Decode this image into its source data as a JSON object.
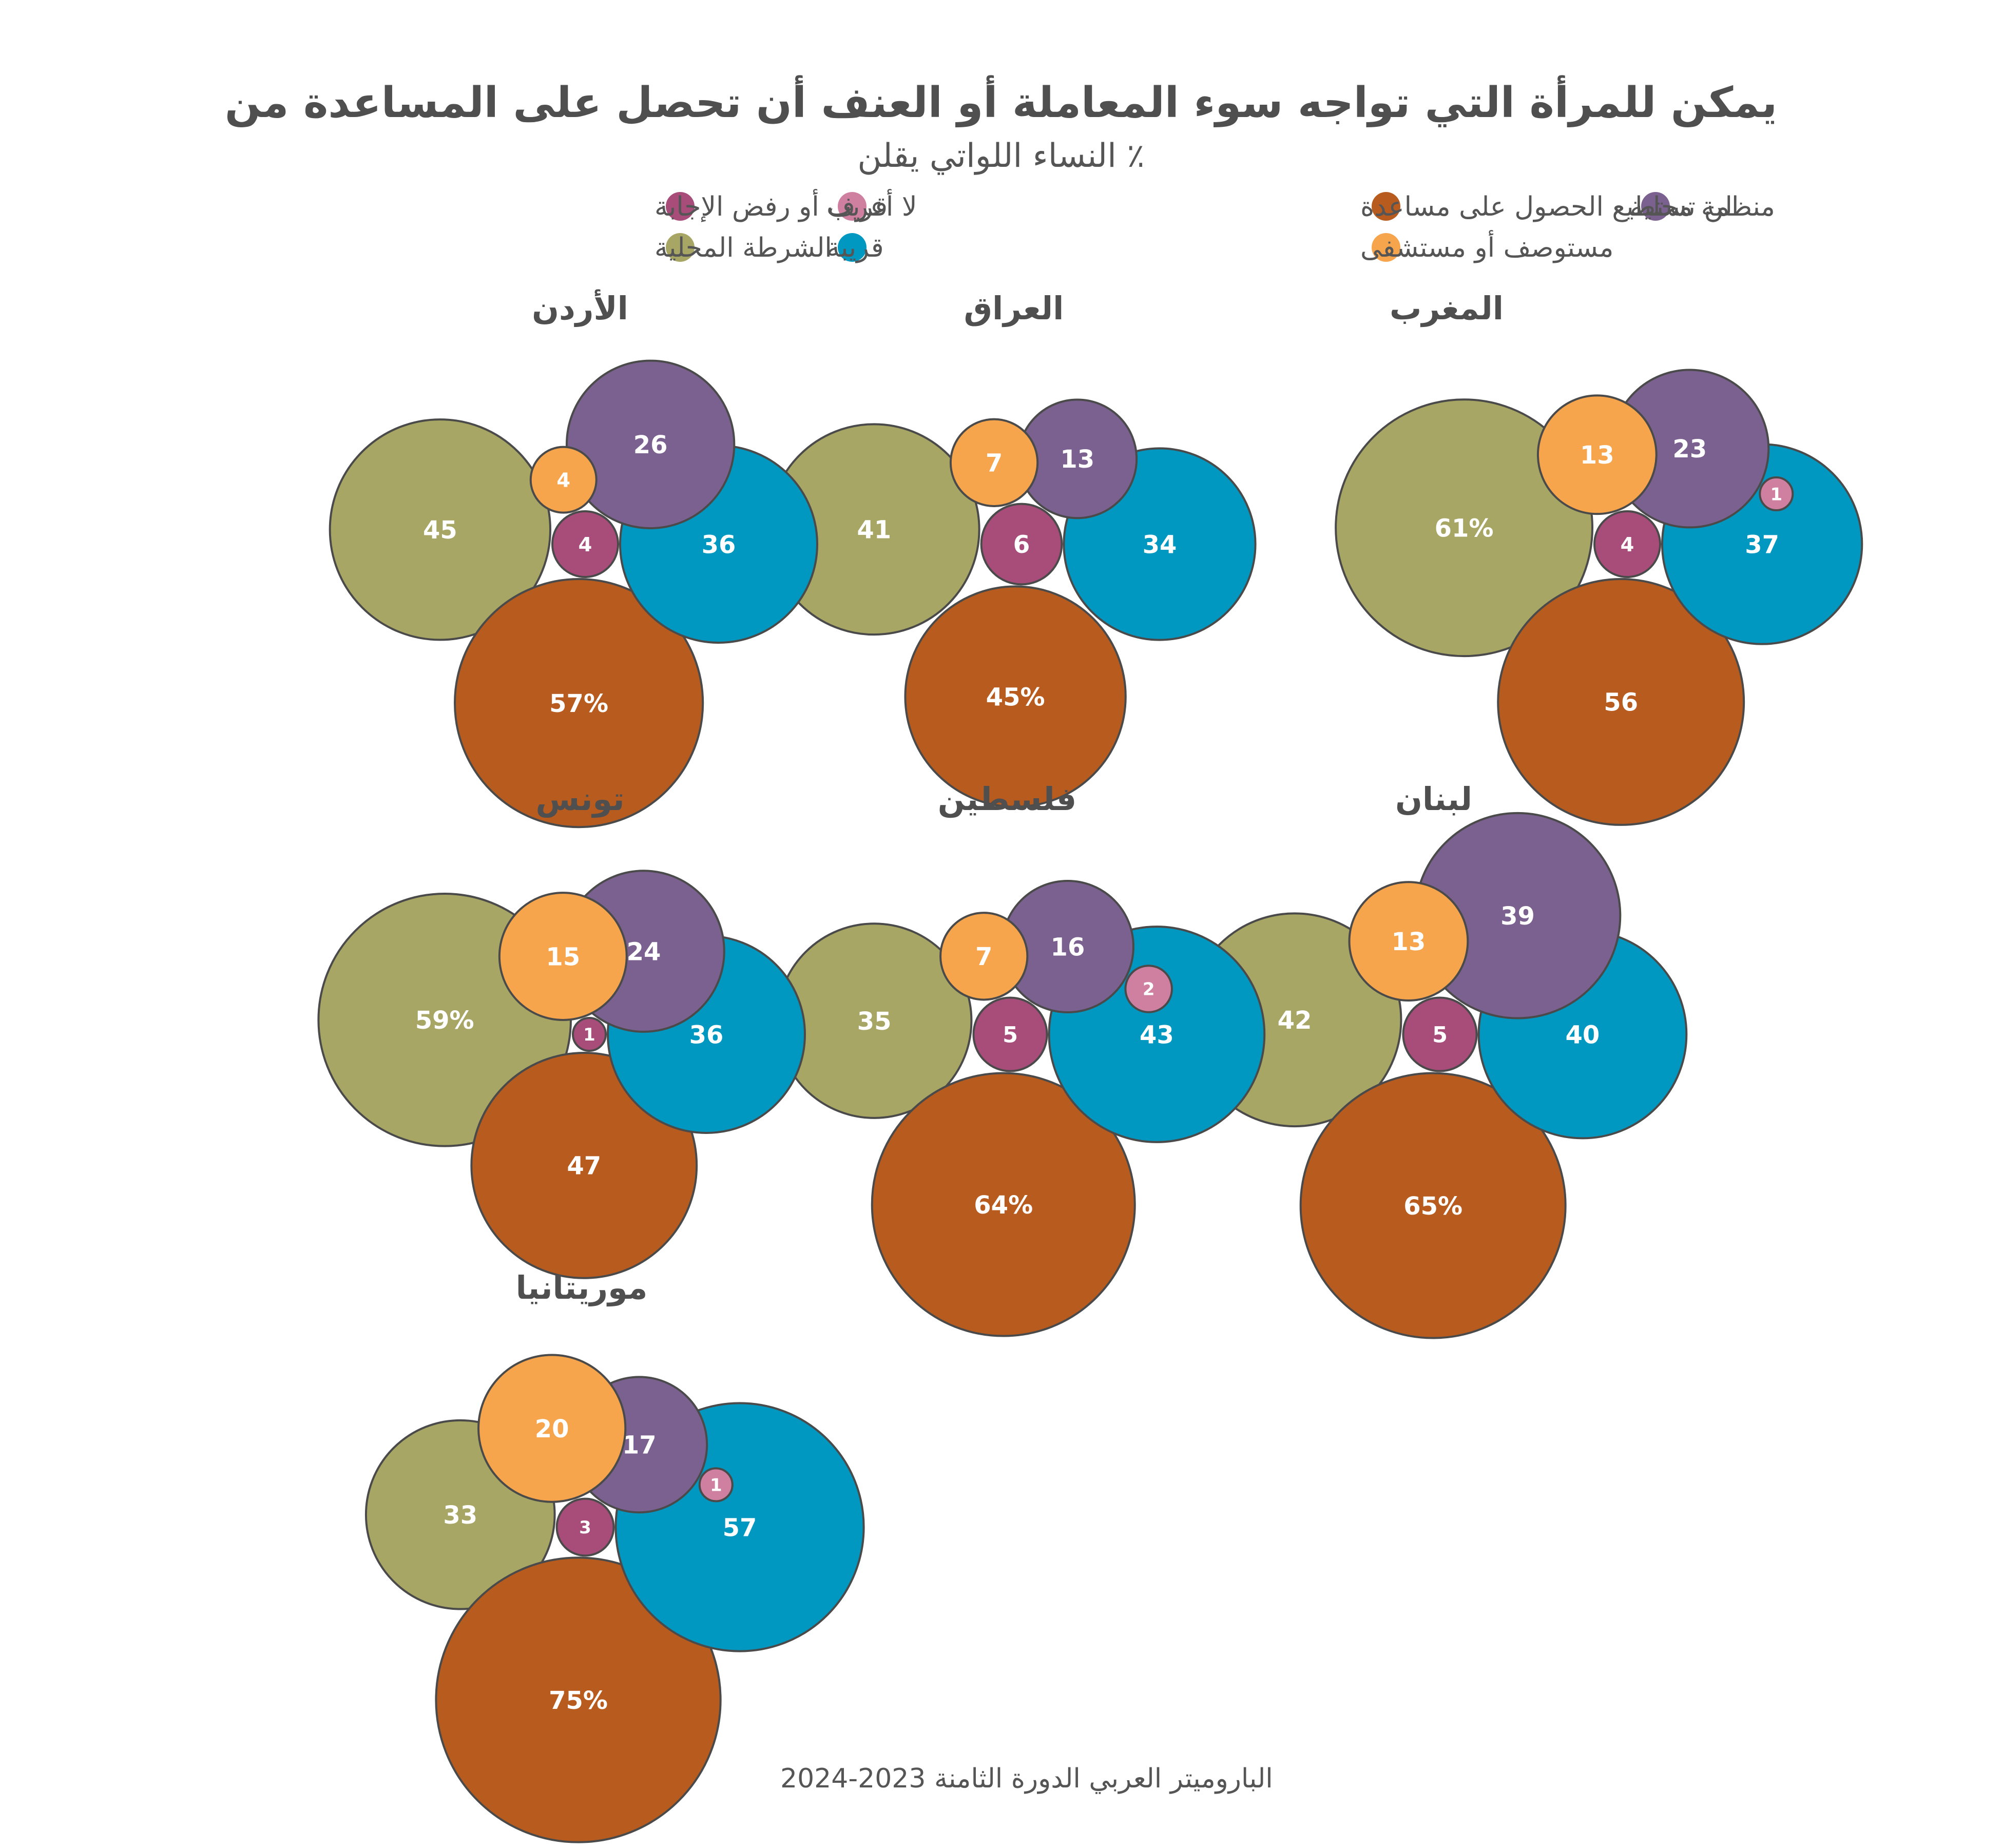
{
  "title": "يمكن للمرأة التي تواجه سوء المعاملة أو العنف أن تحصل على المساعدة من",
  "subtitle": "٪ النساء اللواتي يقلن",
  "source": "الباروميتر العربي الدورة الثامنة 2023-2024",
  "legend": [
    {
      "key": "org",
      "label": "منظمة محلية",
      "color": "#7b6190"
    },
    {
      "key": "none",
      "label": "لن تستطيع الحصول على مساعدة",
      "color": "#b85b1e"
    },
    {
      "key": "male",
      "label": "قريب",
      "color": "#cf7f9f"
    },
    {
      "key": "dk",
      "label": "لا أعرف أو رفض الإجابة",
      "color": "#a84c7a"
    },
    {
      "key": "health",
      "label": "مستوصف أو مستشفى",
      "color": "#f6a54d"
    },
    {
      "key": "female",
      "label": "قريبة",
      "color": "#0098c0"
    },
    {
      "key": "police",
      "label": "الشرطة المحلية",
      "color": "#a8a664"
    }
  ],
  "chart_data": {
    "type": "bubble",
    "title": "يمكن للمرأة التي تواجه سوء المعاملة أو العنف أن تحصل على المساعدة من",
    "subtitle": "٪ النساء اللواتي يقلن",
    "unit": "%",
    "series": [
      "منظمة محلية",
      "لن تستطيع الحصول على مساعدة",
      "قريب",
      "لا أعرف أو رفض الإجابة",
      "مستوصف أو مستشفى",
      "قريبة",
      "الشرطة المحلية"
    ],
    "panels": [
      {
        "country": "المغرب",
        "values": {
          "org": 23,
          "none": 56,
          "male": 1,
          "dk": 4,
          "health": 13,
          "female": 37,
          "police": 61
        },
        "pct_key": "police"
      },
      {
        "country": "العراق",
        "values": {
          "org": 13,
          "none": 45,
          "dk": 6,
          "health": 7,
          "female": 34,
          "police": 41
        },
        "pct_key": "none"
      },
      {
        "country": "الأردن",
        "values": {
          "org": 26,
          "none": 57,
          "dk": 4,
          "health": 4,
          "female": 36,
          "police": 45
        },
        "pct_key": "none"
      },
      {
        "country": "لبنان",
        "values": {
          "org": 39,
          "none": 65,
          "dk": 5,
          "health": 13,
          "female": 40,
          "police": 42
        },
        "pct_key": "none"
      },
      {
        "country": "فلسطين",
        "values": {
          "org": 16,
          "none": 64,
          "male": 2,
          "dk": 5,
          "health": 7,
          "female": 43,
          "police": 35
        },
        "pct_key": "none"
      },
      {
        "country": "تونس",
        "values": {
          "org": 24,
          "none": 47,
          "dk": 1,
          "health": 15,
          "female": 36,
          "police": 59
        },
        "pct_key": "police"
      },
      {
        "country": "موريتانيا",
        "values": {
          "org": 17,
          "none": 75,
          "male": 1,
          "dk": 3,
          "health": 20,
          "female": 57,
          "police": 33
        },
        "pct_key": "none"
      }
    ]
  }
}
